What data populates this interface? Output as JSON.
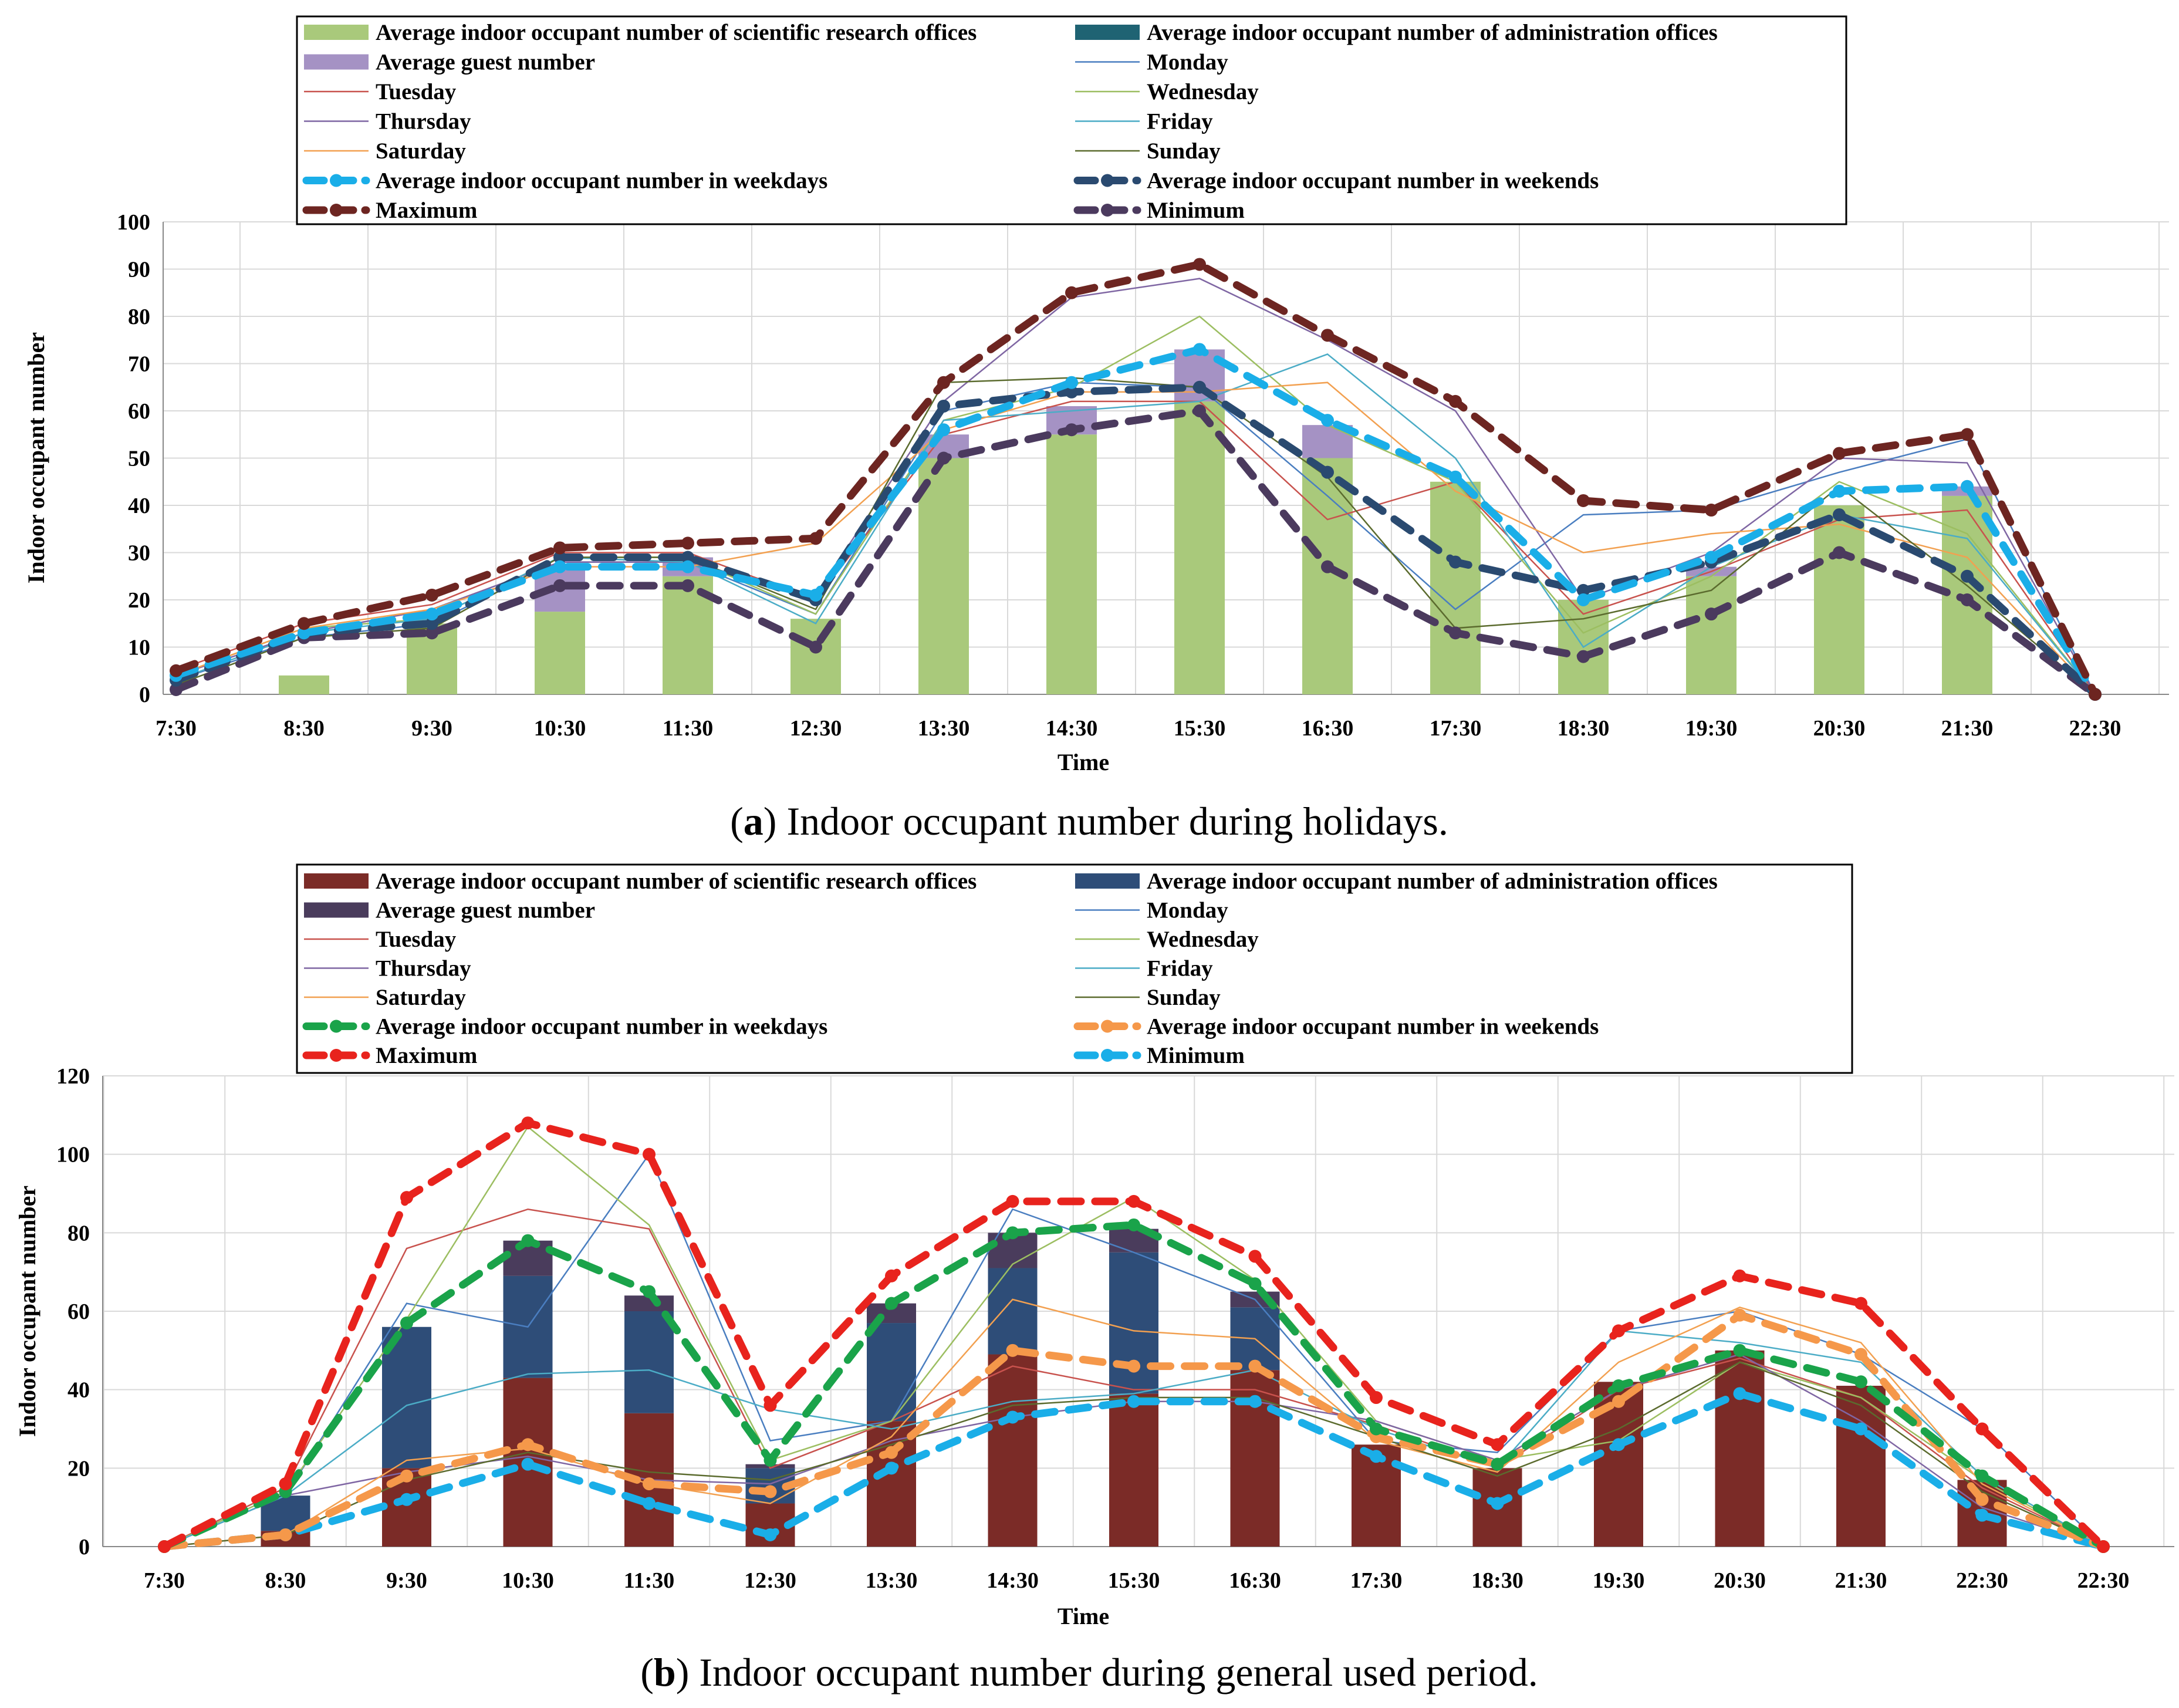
{
  "colors": {
    "a_research": "#a9c97b",
    "a_admin": "#1f6373",
    "a_guest": "#a592c4",
    "b_research": "#7b2b27",
    "b_admin": "#2e4d78",
    "b_guest": "#4a3c5c",
    "monday": "#4a7ec0",
    "tuesday": "#c8524d",
    "wednesday": "#9cbe61",
    "thursday": "#7f66a3",
    "friday": "#4bacc6",
    "saturday": "#f2a050",
    "sunday": "#5b6b2e",
    "a_wkday": "#1aaee8",
    "a_wkend": "#2a4a70",
    "a_max": "#6d2521",
    "a_min": "#4b3a5e",
    "b_wkday": "#1aa34a",
    "b_wkend": "#f5984a",
    "b_max": "#e8231d",
    "b_min": "#1aaee8"
  },
  "chart_data": [
    {
      "id": "a",
      "type": "bar+line",
      "caption_letter": "a",
      "caption_text": ") Indoor occupant number during holidays.",
      "caption_open": "(",
      "xlabel": "Time",
      "ylabel": "Indoor occupant number",
      "ylim": [
        0,
        100
      ],
      "yticks": [
        0,
        10,
        20,
        30,
        40,
        50,
        60,
        70,
        80,
        90,
        100
      ],
      "categories": [
        "7:30",
        "8:30",
        "9:30",
        "10:30",
        "11:30",
        "12:30",
        "13:30",
        "14:30",
        "15:30",
        "16:30",
        "17:30",
        "18:30",
        "19:30",
        "20:30",
        "21:30",
        "22:30"
      ],
      "legend": {
        "research": "Average indoor occupant number of scientific research offices",
        "admin": "Average indoor occupant number of administration offices",
        "guest": "Average guest number",
        "monday": "Monday",
        "tuesday": "Tuesday",
        "wednesday": "Wednesday",
        "thursday": "Thursday",
        "friday": "Friday",
        "saturday": "Saturday",
        "sunday": "Sunday",
        "weekdays": "Average indoor occupant number in weekdays",
        "weekends": "Average indoor occupant number in weekends",
        "maximum": "Maximum",
        "minimum": "Minimum"
      },
      "bars": {
        "research": [
          0,
          4,
          15,
          17.5,
          25,
          16,
          50,
          55,
          62,
          50,
          45,
          20,
          25,
          40,
          42,
          0
        ],
        "admin": [
          0,
          0,
          0,
          0,
          0,
          0,
          0,
          0,
          0,
          0,
          0,
          0,
          0,
          0,
          0,
          0
        ],
        "guest": [
          0,
          0,
          0,
          9.5,
          4,
          0,
          5,
          6,
          11,
          7,
          0,
          0,
          2,
          0,
          2,
          0
        ]
      },
      "series": {
        "monday": [
          3,
          12,
          15,
          28,
          28,
          17,
          60,
          66,
          65,
          42,
          18,
          38,
          39,
          47,
          54,
          0
        ],
        "tuesday": [
          5,
          15,
          19,
          30,
          30,
          20,
          55,
          62,
          62,
          37,
          45,
          17,
          26,
          37,
          39,
          0
        ],
        "wednesday": [
          4,
          14,
          16,
          29,
          29,
          17,
          58,
          65,
          80,
          57,
          45,
          13,
          25,
          45,
          34,
          0
        ],
        "thursday": [
          4,
          13,
          18,
          28,
          28,
          21,
          62,
          84,
          88,
          75,
          60,
          20,
          30,
          50,
          49,
          0
        ],
        "friday": [
          3,
          13,
          16,
          29,
          28,
          15,
          58,
          60,
          62,
          72,
          50,
          10,
          27,
          38,
          33,
          0
        ],
        "saturday": [
          4,
          14,
          18,
          27,
          27,
          32,
          56,
          64,
          64,
          66,
          43,
          30,
          34,
          36,
          29,
          0
        ],
        "sunday": [
          2,
          12,
          14,
          29,
          29,
          18,
          66,
          67,
          65,
          46,
          14,
          16,
          22,
          44,
          23,
          0
        ],
        "weekdays": [
          4,
          13,
          17,
          27,
          27,
          21,
          56,
          66,
          73,
          58,
          46,
          20,
          29,
          43,
          44,
          0
        ],
        "weekends": [
          3,
          13,
          15,
          29,
          29,
          20,
          61,
          64,
          65,
          47,
          28,
          22,
          28,
          38,
          25,
          0
        ],
        "maximum": [
          5,
          15,
          21,
          31,
          32,
          33,
          66,
          85,
          91,
          76,
          62,
          41,
          39,
          51,
          55,
          0
        ],
        "minimum": [
          1,
          12,
          13,
          23,
          23,
          10,
          50,
          56,
          60,
          27,
          13,
          8,
          17,
          30,
          20,
          0
        ]
      }
    },
    {
      "id": "b",
      "type": "bar+line",
      "caption_letter": "b",
      "caption_text": ") Indoor occupant number during general used period.",
      "caption_open": "(",
      "xlabel": "Time",
      "ylabel": "Indoor occupant number",
      "ylim": [
        0,
        120
      ],
      "yticks": [
        0,
        20,
        40,
        60,
        80,
        100,
        120
      ],
      "categories": [
        "7:30",
        "8:30",
        "9:30",
        "10:30",
        "11:30",
        "12:30",
        "13:30",
        "14:30",
        "15:30",
        "16:30",
        "17:30",
        "18:30",
        "19:30",
        "20:30",
        "21:30",
        "22:30",
        "22:30"
      ],
      "legend": {
        "research": "Average indoor occupant number of scientific research offices",
        "admin": "Average indoor occupant number of administration offices",
        "guest": "Average guest number",
        "monday": "Monday",
        "tuesday": "Tuesday",
        "wednesday": "Wednesday",
        "thursday": "Thursday",
        "friday": "Friday",
        "saturday": "Saturday",
        "sunday": "Sunday",
        "weekdays": "Average indoor occupant number in weekdays",
        "weekends": "Average indoor occupant number in weekends",
        "maximum": "Maximum",
        "minimum": "Minimum"
      },
      "bars": {
        "research": [
          0,
          4,
          20,
          43,
          34,
          11,
          32,
          49,
          39,
          45,
          26,
          20,
          42,
          50,
          41,
          17,
          0
        ],
        "admin": [
          0,
          9,
          36,
          26,
          26,
          9,
          25,
          22,
          36,
          16,
          0,
          0,
          0,
          0,
          0,
          0,
          0
        ],
        "guest": [
          0,
          0,
          0,
          9,
          4,
          1,
          5,
          9,
          6,
          4,
          0,
          0,
          0,
          0,
          0,
          0,
          0
        ]
      },
      "series": {
        "monday": [
          0,
          13,
          62,
          56,
          100,
          27,
          32,
          86,
          75,
          63,
          27,
          24,
          55,
          60,
          49,
          30,
          0
        ],
        "tuesday": [
          0,
          15,
          76,
          86,
          81,
          20,
          32,
          46,
          40,
          40,
          31,
          20,
          40,
          48,
          38,
          15,
          0
        ],
        "wednesday": [
          0,
          14,
          58,
          107,
          82,
          22,
          32,
          72,
          89,
          68,
          32,
          22,
          27,
          47,
          38,
          17,
          0
        ],
        "thursday": [
          0,
          13,
          19,
          23,
          17,
          16,
          27,
          33,
          37,
          37,
          32,
          22,
          40,
          49,
          32,
          10,
          0
        ],
        "friday": [
          0,
          13,
          36,
          44,
          45,
          35,
          30,
          37,
          39,
          45,
          30,
          20,
          55,
          52,
          47,
          18,
          0
        ],
        "saturday": [
          0,
          3,
          22,
          25,
          16,
          11,
          28,
          63,
          55,
          53,
          27,
          19,
          47,
          61,
          52,
          16,
          0
        ],
        "sunday": [
          0,
          3,
          17,
          24,
          19,
          17,
          26,
          36,
          38,
          38,
          28,
          18,
          30,
          47,
          36,
          14,
          0
        ],
        "weekdays": [
          0,
          14,
          57,
          78,
          65,
          22,
          62,
          80,
          82,
          67,
          30,
          21,
          41,
          50,
          42,
          18,
          0
        ],
        "weekends": [
          0,
          3,
          18,
          26,
          16,
          14,
          24,
          50,
          46,
          46,
          28,
          21,
          37,
          59,
          49,
          12,
          0
        ],
        "maximum": [
          0,
          16,
          89,
          108,
          100,
          36,
          69,
          88,
          88,
          74,
          38,
          26,
          55,
          69,
          62,
          30,
          0
        ],
        "minimum": [
          0,
          3,
          12,
          21,
          11,
          3,
          20,
          33,
          37,
          37,
          23,
          11,
          26,
          39,
          30,
          8,
          0
        ]
      }
    }
  ]
}
